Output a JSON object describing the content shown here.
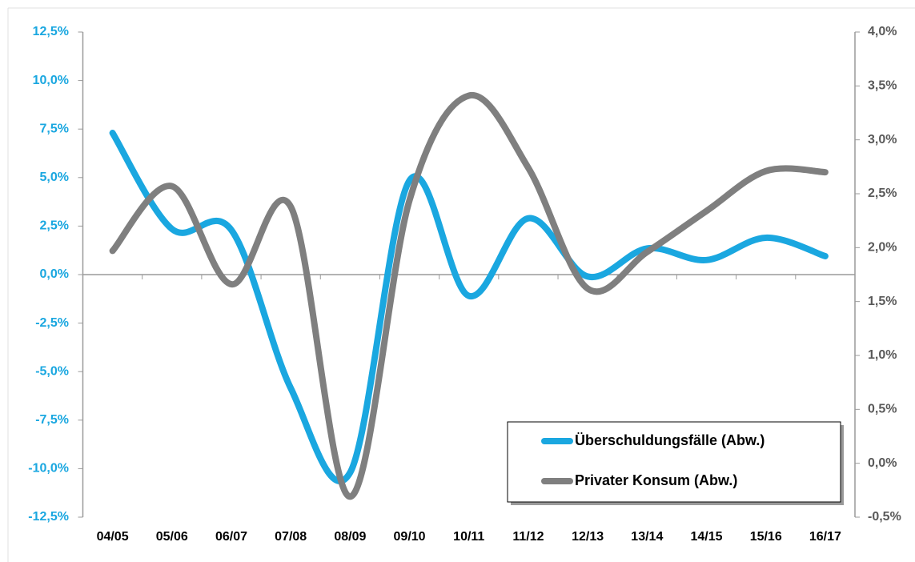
{
  "chart_data": {
    "type": "line",
    "categories": [
      "04/05",
      "05/06",
      "06/07",
      "07/08",
      "08/09",
      "09/10",
      "10/11",
      "11/12",
      "12/13",
      "13/14",
      "14/15",
      "15/16",
      "16/17"
    ],
    "series": [
      {
        "name": "Überschuldungsfälle (Abw.)",
        "color": "#1aa7e0",
        "values": [
          7.3,
          2.35,
          2.3,
          -5.85,
          -10.2,
          4.85,
          -1.1,
          2.9,
          -0.1,
          1.35,
          0.75,
          1.9,
          0.95
        ]
      },
      {
        "name": "Privater Konsum (Abw.)",
        "color": "#7f7f7f",
        "axis": "y2",
        "values": [
          1.97,
          2.57,
          1.66,
          2.38,
          -0.31,
          2.44,
          3.41,
          2.74,
          1.62,
          1.96,
          2.34,
          2.71,
          2.7
        ]
      }
    ],
    "ylim": [
      -12.5,
      12.5
    ],
    "yticks": [
      {
        "value": -12.5,
        "label": "-12,5%"
      },
      {
        "value": -10,
        "label": "-10,0%"
      },
      {
        "value": -7.5,
        "label": "-7,5%"
      },
      {
        "value": -5,
        "label": "-5,0%"
      },
      {
        "value": -2.5,
        "label": "-2,5%"
      },
      {
        "value": 0,
        "label": "0,0%"
      },
      {
        "value": 2.5,
        "label": "2,5%"
      },
      {
        "value": 5,
        "label": "5,0%"
      },
      {
        "value": 7.5,
        "label": "7,5%"
      },
      {
        "value": 10,
        "label": "10,0%"
      },
      {
        "value": 12.5,
        "label": "12,5%"
      }
    ],
    "y2lim": [
      -0.5,
      4.0
    ],
    "y2ticks": [
      {
        "value": -0.5,
        "label": "-0,5%"
      },
      {
        "value": 0,
        "label": "0,0%"
      },
      {
        "value": 0.5,
        "label": "0,5%"
      },
      {
        "value": 1,
        "label": "1,0%"
      },
      {
        "value": 1.5,
        "label": "1,5%"
      },
      {
        "value": 2,
        "label": "2,0%"
      },
      {
        "value": 2.5,
        "label": "2,5%"
      },
      {
        "value": 3,
        "label": "3,0%"
      },
      {
        "value": 3.5,
        "label": "3,5%"
      },
      {
        "value": 4,
        "label": "4,0%"
      }
    ],
    "ycolor": "#1aa7e0",
    "y2color": "#595959",
    "legend": "lower right"
  }
}
